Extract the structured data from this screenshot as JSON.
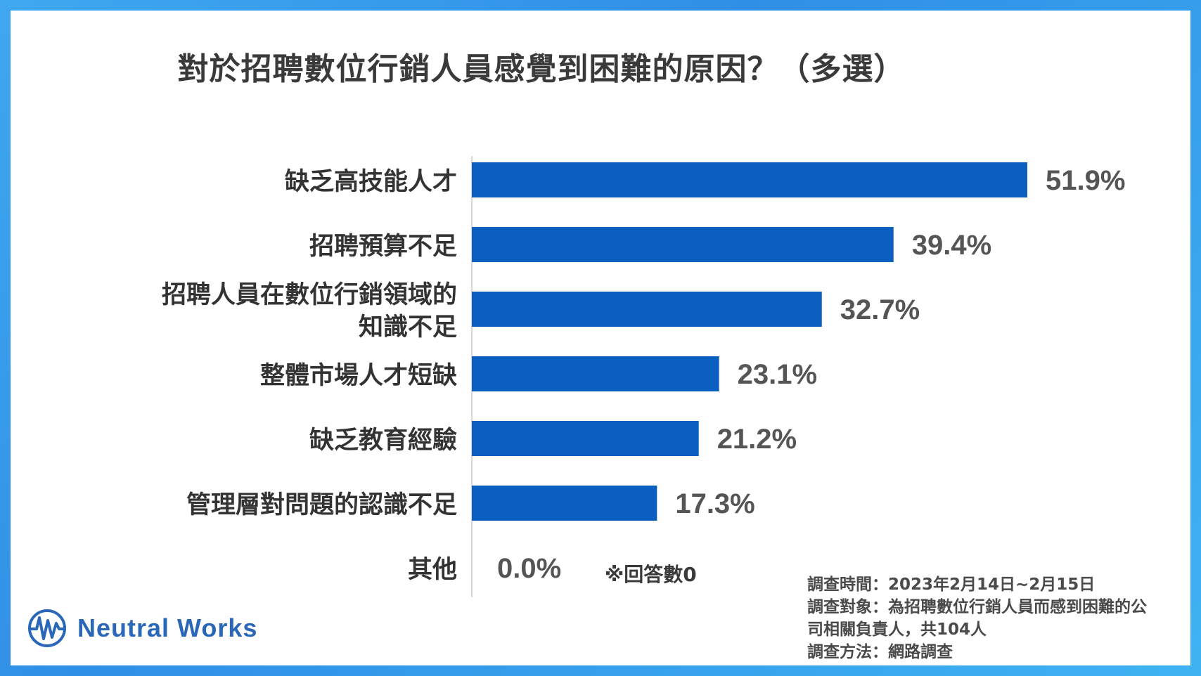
{
  "chart_data": {
    "type": "bar",
    "orientation": "horizontal",
    "title": "對於招聘數位行銷人員感覺到困難的原因？（多選）",
    "categories": [
      "缺乏高技能人才",
      "招聘預算不足",
      "招聘人員在數位行銷領域的\n知識不足",
      "整體市場人才短缺",
      "缺乏教育經驗",
      "管理層對問題的認識不足",
      "其他"
    ],
    "values": [
      51.9,
      39.4,
      32.7,
      23.1,
      21.2,
      17.3,
      0.0
    ],
    "value_labels": [
      "51.9%",
      "39.4%",
      "32.7%",
      "23.1%",
      "21.2%",
      "17.3%",
      "0.0%"
    ],
    "unit": "%",
    "xlim": [
      0,
      55
    ],
    "bar_color": "#0a5fc1",
    "grid": false,
    "legend": "none"
  },
  "note": "※回答數0",
  "survey": {
    "time": "調查時間：2023年2月14日~2月15日",
    "target_line1": "調查對象：為招聘數位行銷人員而感到困難的公",
    "target_line2": "司相關負責人，共104人",
    "method": "調查方法：網路調查"
  },
  "brand": {
    "name": "Neutral Works",
    "icon": "neutral-works-logo-icon",
    "color": "#2a67b8"
  }
}
